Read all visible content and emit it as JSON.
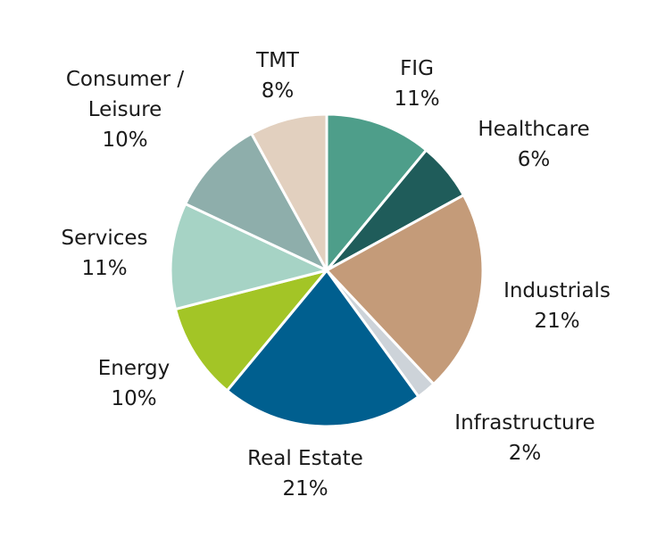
{
  "chart_data": {
    "type": "pie",
    "title": "",
    "start_angle_deg": 0,
    "direction": "clockwise",
    "slice_border_color": "#ffffff",
    "slices": [
      {
        "name": "FIG",
        "label_lines": [
          "FIG"
        ],
        "percent_label": "11%",
        "value": 11,
        "color": "#4e9e8a"
      },
      {
        "name": "Healthcare",
        "label_lines": [
          "Healthcare"
        ],
        "percent_label": "6%",
        "value": 6,
        "color": "#1f5c5a"
      },
      {
        "name": "Industrials",
        "label_lines": [
          "Industrials"
        ],
        "percent_label": "21%",
        "value": 21,
        "color": "#c49b79"
      },
      {
        "name": "Infrastructure",
        "label_lines": [
          "Infrastructure"
        ],
        "percent_label": "2%",
        "value": 2,
        "color": "#cdd3d9"
      },
      {
        "name": "Real Estate",
        "label_lines": [
          "Real Estate"
        ],
        "percent_label": "21%",
        "value": 21,
        "color": "#005f8f"
      },
      {
        "name": "Energy",
        "label_lines": [
          "Energy"
        ],
        "percent_label": "10%",
        "value": 10,
        "color": "#a3c526"
      },
      {
        "name": "Services",
        "label_lines": [
          "Services"
        ],
        "percent_label": "11%",
        "value": 11,
        "color": "#a6d3c5"
      },
      {
        "name": "Consumer / Leisure",
        "label_lines": [
          "Consumer /",
          "Leisure"
        ],
        "percent_label": "10%",
        "value": 10,
        "color": "#8eaeab"
      },
      {
        "name": "TMT",
        "label_lines": [
          "TMT"
        ],
        "percent_label": "8%",
        "value": 8,
        "color": "#e2d0bf"
      }
    ]
  }
}
